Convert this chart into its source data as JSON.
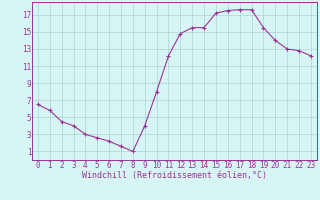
{
  "x": [
    0,
    1,
    2,
    3,
    4,
    5,
    6,
    7,
    8,
    9,
    10,
    11,
    12,
    13,
    14,
    15,
    16,
    17,
    18,
    19,
    20,
    21,
    22,
    23
  ],
  "y": [
    6.5,
    5.8,
    4.5,
    4.0,
    3.0,
    2.6,
    2.2,
    1.6,
    1.0,
    4.0,
    8.0,
    12.2,
    14.8,
    15.5,
    15.5,
    17.2,
    17.5,
    17.6,
    17.6,
    15.5,
    14.0,
    13.0,
    12.8,
    12.2
  ],
  "line_color": "#993399",
  "marker": "+",
  "marker_size": 3,
  "bg_color": "#d8f5f5",
  "grid_color": "#aad4d4",
  "xlabel": "Windchill (Refroidissement éolien,°C)",
  "xlabel_color": "#993399",
  "xlabel_fontsize": 6.0,
  "yticks": [
    1,
    3,
    5,
    7,
    9,
    11,
    13,
    15,
    17
  ],
  "xticks": [
    0,
    1,
    2,
    3,
    4,
    5,
    6,
    7,
    8,
    9,
    10,
    11,
    12,
    13,
    14,
    15,
    16,
    17,
    18,
    19,
    20,
    21,
    22,
    23
  ],
  "xlim": [
    -0.5,
    23.5
  ],
  "ylim": [
    0,
    18.5
  ],
  "tick_fontsize": 5.5,
  "tick_color": "#993399",
  "spine_color": "#993399",
  "axis_bg": "#d8f5f5",
  "linewidth": 0.8,
  "markeredgewidth": 0.8
}
